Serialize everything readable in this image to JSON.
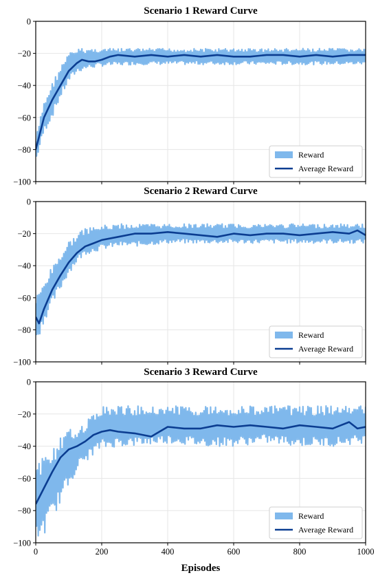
{
  "chart_data": [
    {
      "type": "line",
      "title": "Scenario 1 Reward Curve",
      "xlim": [
        0,
        1000
      ],
      "ylim": [
        -100,
        0
      ],
      "yticks": [
        0,
        -20,
        -40,
        -60,
        -80,
        -100
      ],
      "xticks": [
        0,
        200,
        400,
        600,
        800,
        1000
      ],
      "grid": true,
      "legend_position": "lower-right",
      "series": [
        {
          "name": "Reward",
          "style": "band",
          "color": "#7fb8ec",
          "x": [
            0,
            25,
            50,
            75,
            100,
            125,
            150,
            200,
            300,
            400,
            500,
            600,
            700,
            800,
            900,
            1000
          ],
          "upper": [
            -73,
            -50,
            -38,
            -28,
            -20,
            -17,
            -17,
            -17,
            -17,
            -17,
            -17,
            -17,
            -17,
            -17,
            -17,
            -17
          ],
          "lower": [
            -88,
            -70,
            -60,
            -48,
            -38,
            -32,
            -30,
            -28,
            -27,
            -27,
            -27,
            -27,
            -27,
            -27,
            -27,
            -27
          ]
        },
        {
          "name": "Average Reward",
          "style": "line",
          "color": "#0b3d91",
          "x": [
            0,
            10,
            25,
            50,
            75,
            100,
            125,
            140,
            160,
            180,
            200,
            225,
            250,
            300,
            350,
            400,
            450,
            500,
            550,
            600,
            650,
            700,
            750,
            800,
            850,
            900,
            950,
            1000
          ],
          "y": [
            -80,
            -72,
            -60,
            -49,
            -40,
            -31,
            -26,
            -24,
            -25,
            -25,
            -24,
            -22,
            -21,
            -22,
            -21,
            -22,
            -21,
            -22,
            -21,
            -22,
            -22,
            -21,
            -21,
            -22,
            -21,
            -22,
            -21,
            -21
          ]
        }
      ]
    },
    {
      "type": "line",
      "title": "Scenario 2 Reward Curve",
      "xlim": [
        0,
        1000
      ],
      "ylim": [
        -100,
        0
      ],
      "yticks": [
        0,
        -20,
        -40,
        -60,
        -80,
        -100
      ],
      "xticks": [
        0,
        200,
        400,
        600,
        800,
        1000
      ],
      "grid": true,
      "legend_position": "lower-right",
      "series": [
        {
          "name": "Reward",
          "style": "band",
          "color": "#7fb8ec",
          "x": [
            0,
            25,
            50,
            75,
            100,
            125,
            150,
            200,
            250,
            300,
            400,
            500,
            600,
            700,
            800,
            900,
            1000
          ],
          "upper": [
            -60,
            -50,
            -40,
            -32,
            -25,
            -20,
            -17,
            -15,
            -14,
            -14,
            -14,
            -14,
            -14,
            -14,
            -14,
            -14,
            -14
          ],
          "lower": [
            -90,
            -75,
            -65,
            -55,
            -45,
            -38,
            -33,
            -30,
            -28,
            -28,
            -26,
            -26,
            -26,
            -26,
            -26,
            -26,
            -26
          ]
        },
        {
          "name": "Average Reward",
          "style": "line",
          "color": "#0b3d91",
          "x": [
            0,
            10,
            25,
            50,
            75,
            100,
            125,
            150,
            175,
            200,
            250,
            300,
            350,
            400,
            450,
            500,
            550,
            600,
            650,
            700,
            750,
            800,
            850,
            900,
            950,
            975,
            1000
          ],
          "y": [
            -72,
            -76,
            -67,
            -55,
            -46,
            -38,
            -32,
            -28,
            -26,
            -24,
            -22,
            -20,
            -20,
            -19,
            -20,
            -21,
            -22,
            -20,
            -21,
            -20,
            -20,
            -21,
            -20,
            -19,
            -20,
            -18,
            -21
          ]
        }
      ]
    },
    {
      "type": "line",
      "title": "Scenario 3 Reward Curve",
      "xlabel": "Episodes",
      "xlim": [
        0,
        1000
      ],
      "ylim": [
        -100,
        0
      ],
      "yticks": [
        0,
        -20,
        -40,
        -60,
        -80,
        -100
      ],
      "xticks": [
        0,
        200,
        400,
        600,
        800,
        1000
      ],
      "grid": true,
      "legend_position": "lower-right",
      "series": [
        {
          "name": "Reward",
          "style": "band",
          "color": "#7fb8ec",
          "x": [
            0,
            25,
            50,
            75,
            100,
            125,
            150,
            175,
            200,
            250,
            300,
            400,
            500,
            600,
            700,
            800,
            900,
            1000
          ],
          "upper": [
            -50,
            -45,
            -40,
            -35,
            -30,
            -28,
            -25,
            -20,
            -15,
            -15,
            -15,
            -15,
            -15,
            -15,
            -15,
            -15,
            -15,
            -15
          ],
          "lower": [
            -100,
            -95,
            -85,
            -75,
            -65,
            -55,
            -50,
            -45,
            -42,
            -40,
            -40,
            -38,
            -40,
            -40,
            -38,
            -40,
            -40,
            -38
          ]
        },
        {
          "name": "Average Reward",
          "style": "line",
          "color": "#0b3d91",
          "x": [
            0,
            10,
            25,
            50,
            75,
            100,
            125,
            150,
            175,
            200,
            225,
            250,
            300,
            350,
            375,
            400,
            450,
            500,
            550,
            600,
            650,
            700,
            750,
            800,
            850,
            900,
            925,
            950,
            975,
            1000
          ],
          "y": [
            -76,
            -72,
            -66,
            -56,
            -47,
            -42,
            -40,
            -37,
            -33,
            -31,
            -30,
            -31,
            -32,
            -34,
            -31,
            -28,
            -29,
            -29,
            -27,
            -28,
            -27,
            -28,
            -29,
            -27,
            -28,
            -29,
            -27,
            -25,
            -29,
            -28
          ]
        }
      ]
    }
  ],
  "legend": {
    "reward_label": "Reward",
    "average_label": "Average Reward"
  }
}
